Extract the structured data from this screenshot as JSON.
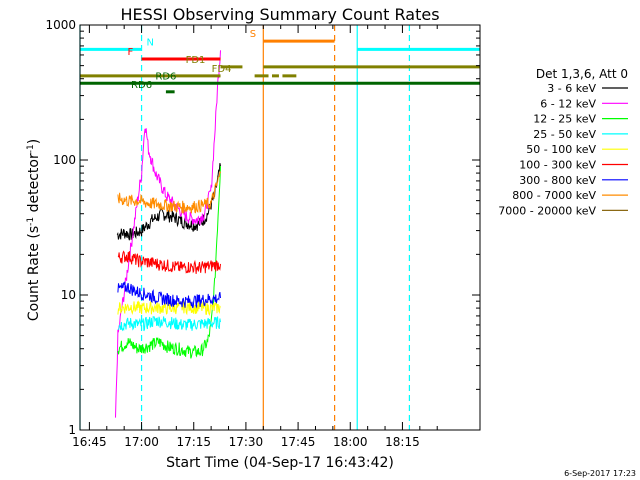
{
  "chart_data": {
    "type": "line",
    "title": "HESSI Observing Summary Count Rates",
    "xlabel": "Start Time (04-Sep-17 16:43:42)",
    "ylabel_main": "Count Rate (s",
    "ylabel_sup1": "-1",
    "ylabel_mid": " detector",
    "ylabel_sup2": "-1",
    "ylabel_end": ")",
    "yscale": "log",
    "ylim": [
      1,
      1000
    ],
    "xlim_minutes": [
      -17.7,
      97.3
    ],
    "x_ticks": [
      {
        "m": -15,
        "label": "16:45"
      },
      {
        "m": 0,
        "label": "17:00"
      },
      {
        "m": 15,
        "label": "17:15"
      },
      {
        "m": 30,
        "label": "17:30"
      },
      {
        "m": 45,
        "label": "17:45"
      },
      {
        "m": 60,
        "label": "18:00"
      },
      {
        "m": 75,
        "label": "18:15"
      }
    ],
    "y_ticks": [
      {
        "v": 1,
        "label": "1"
      },
      {
        "v": 10,
        "label": "10"
      },
      {
        "v": 100,
        "label": "100"
      },
      {
        "v": 1000,
        "label": "1000"
      }
    ],
    "legend_title": "Det 1,3,6, Att 0",
    "series": [
      {
        "name": "3 - 6 keV",
        "color": "#000000",
        "x": [
          -7,
          -5,
          -3,
          0,
          3,
          6,
          9,
          12,
          15,
          17,
          19,
          21,
          22.7
        ],
        "y": [
          28,
          29,
          28,
          30,
          36,
          40,
          38,
          35,
          33,
          34,
          40,
          55,
          90
        ]
      },
      {
        "name": "6 - 12 keV",
        "color": "#ff00ff",
        "x": [
          -7.5,
          -6.8,
          0,
          1,
          2,
          4,
          7,
          10,
          13,
          16,
          18,
          20,
          21,
          22,
          22.7
        ],
        "y": [
          1.2,
          5,
          80,
          190,
          120,
          80,
          55,
          45,
          38,
          36,
          40,
          60,
          150,
          400,
          650
        ]
      },
      {
        "name": "12 - 25 keV",
        "color": "#00ff00",
        "x": [
          -6.8,
          -4,
          -1,
          2,
          5,
          8,
          11,
          14,
          17,
          19,
          20,
          21,
          22,
          22.7
        ],
        "y": [
          4,
          4.5,
          4,
          4.2,
          4.5,
          4.1,
          4,
          3.8,
          3.8,
          4.5,
          6,
          12,
          40,
          90
        ]
      },
      {
        "name": "25 - 50 keV",
        "color": "#00ffff",
        "x": [
          -6.8,
          -3,
          0,
          4,
          8,
          12,
          16,
          20,
          22.7
        ],
        "y": [
          6,
          6.2,
          6,
          6.5,
          6.3,
          6,
          6.1,
          6.2,
          6.3
        ]
      },
      {
        "name": "50 - 100 keV",
        "color": "#ffff00",
        "x": [
          -6.8,
          -3,
          0,
          4,
          8,
          12,
          16,
          20,
          22.7
        ],
        "y": [
          8,
          8.2,
          8,
          8.1,
          8,
          8.2,
          8.1,
          8,
          8.1
        ]
      },
      {
        "name": "100 - 300 keV",
        "color": "#ff0000",
        "x": [
          -6.8,
          -4,
          -1,
          2,
          5,
          8,
          11,
          14,
          17,
          20,
          22.7
        ],
        "y": [
          19,
          19.5,
          18,
          17.5,
          17,
          16.5,
          16,
          16.2,
          16,
          16.5,
          17
        ]
      },
      {
        "name": "300 - 800 keV",
        "color": "#0000ff",
        "x": [
          -6.8,
          -4,
          -1,
          2,
          5,
          8,
          11,
          14,
          17,
          20,
          22.7
        ],
        "y": [
          11,
          11.5,
          10.5,
          10,
          9.5,
          9.3,
          9,
          9,
          9.2,
          9.4,
          9.5
        ]
      },
      {
        "name": "800 - 7000 keV",
        "color": "#ff8c00",
        "x": [
          -6.8,
          -4,
          -1,
          2,
          5,
          8,
          11,
          14,
          17,
          20,
          22.7
        ],
        "y": [
          52,
          50,
          50,
          48,
          47,
          46,
          45,
          45,
          46,
          48,
          80
        ]
      },
      {
        "name": "7000 - 20000 keV",
        "color": "#8b6914",
        "x": [],
        "y": []
      }
    ],
    "flag_bars": [
      {
        "label": "N",
        "color": "#00ffff",
        "segments": [
          [
            -17.7,
            0.0
          ],
          [
            62,
            97.3
          ]
        ],
        "level": 660,
        "label_m": 2.5
      },
      {
        "label": "F",
        "color": "#ff0000",
        "segments": [
          [
            0.0,
            22.7
          ]
        ],
        "level": 560,
        "label_m": -3.2
      },
      {
        "label": "S",
        "color": "#ff8000",
        "segments": [
          [
            35.0,
            55.5
          ]
        ],
        "level": 760,
        "label_m": 32
      },
      {
        "label": "FD1",
        "color": "#808000",
        "segments": [
          [
            22.7,
            29.0
          ],
          [
            35.0,
            97.3
          ]
        ],
        "level": 490,
        "label_m": 15.5
      },
      {
        "label": "FD4",
        "color": "#808000",
        "segments": [
          [
            -17.7,
            22.7
          ],
          [
            32.5,
            36.5
          ],
          [
            37.5,
            39.5
          ],
          [
            40.5,
            44.5
          ]
        ],
        "level": 420,
        "label_m": 23
      },
      {
        "label": "RD6",
        "color": "#006400",
        "segments": [
          [
            -17.7,
            97.3
          ]
        ],
        "level": 370,
        "label_m": 7
      },
      {
        "label": "RD6",
        "color": "#006400",
        "segments": [
          [
            7.0,
            9.5
          ]
        ],
        "level": 320,
        "label_m": 0
      }
    ],
    "vertical_lines": [
      {
        "m": -17.7,
        "color": "#00ffff",
        "dashed": false
      },
      {
        "m": 0.0,
        "color": "#00ffff",
        "dashed": true
      },
      {
        "m": 35.0,
        "color": "#ff8000",
        "dashed": false
      },
      {
        "m": 55.5,
        "color": "#ff8000",
        "dashed": true
      },
      {
        "m": 62.0,
        "color": "#00ffff",
        "dashed": false
      },
      {
        "m": 77.0,
        "color": "#00ffff",
        "dashed": true
      }
    ],
    "footer_date": "6-Sep-2017 17:23"
  }
}
